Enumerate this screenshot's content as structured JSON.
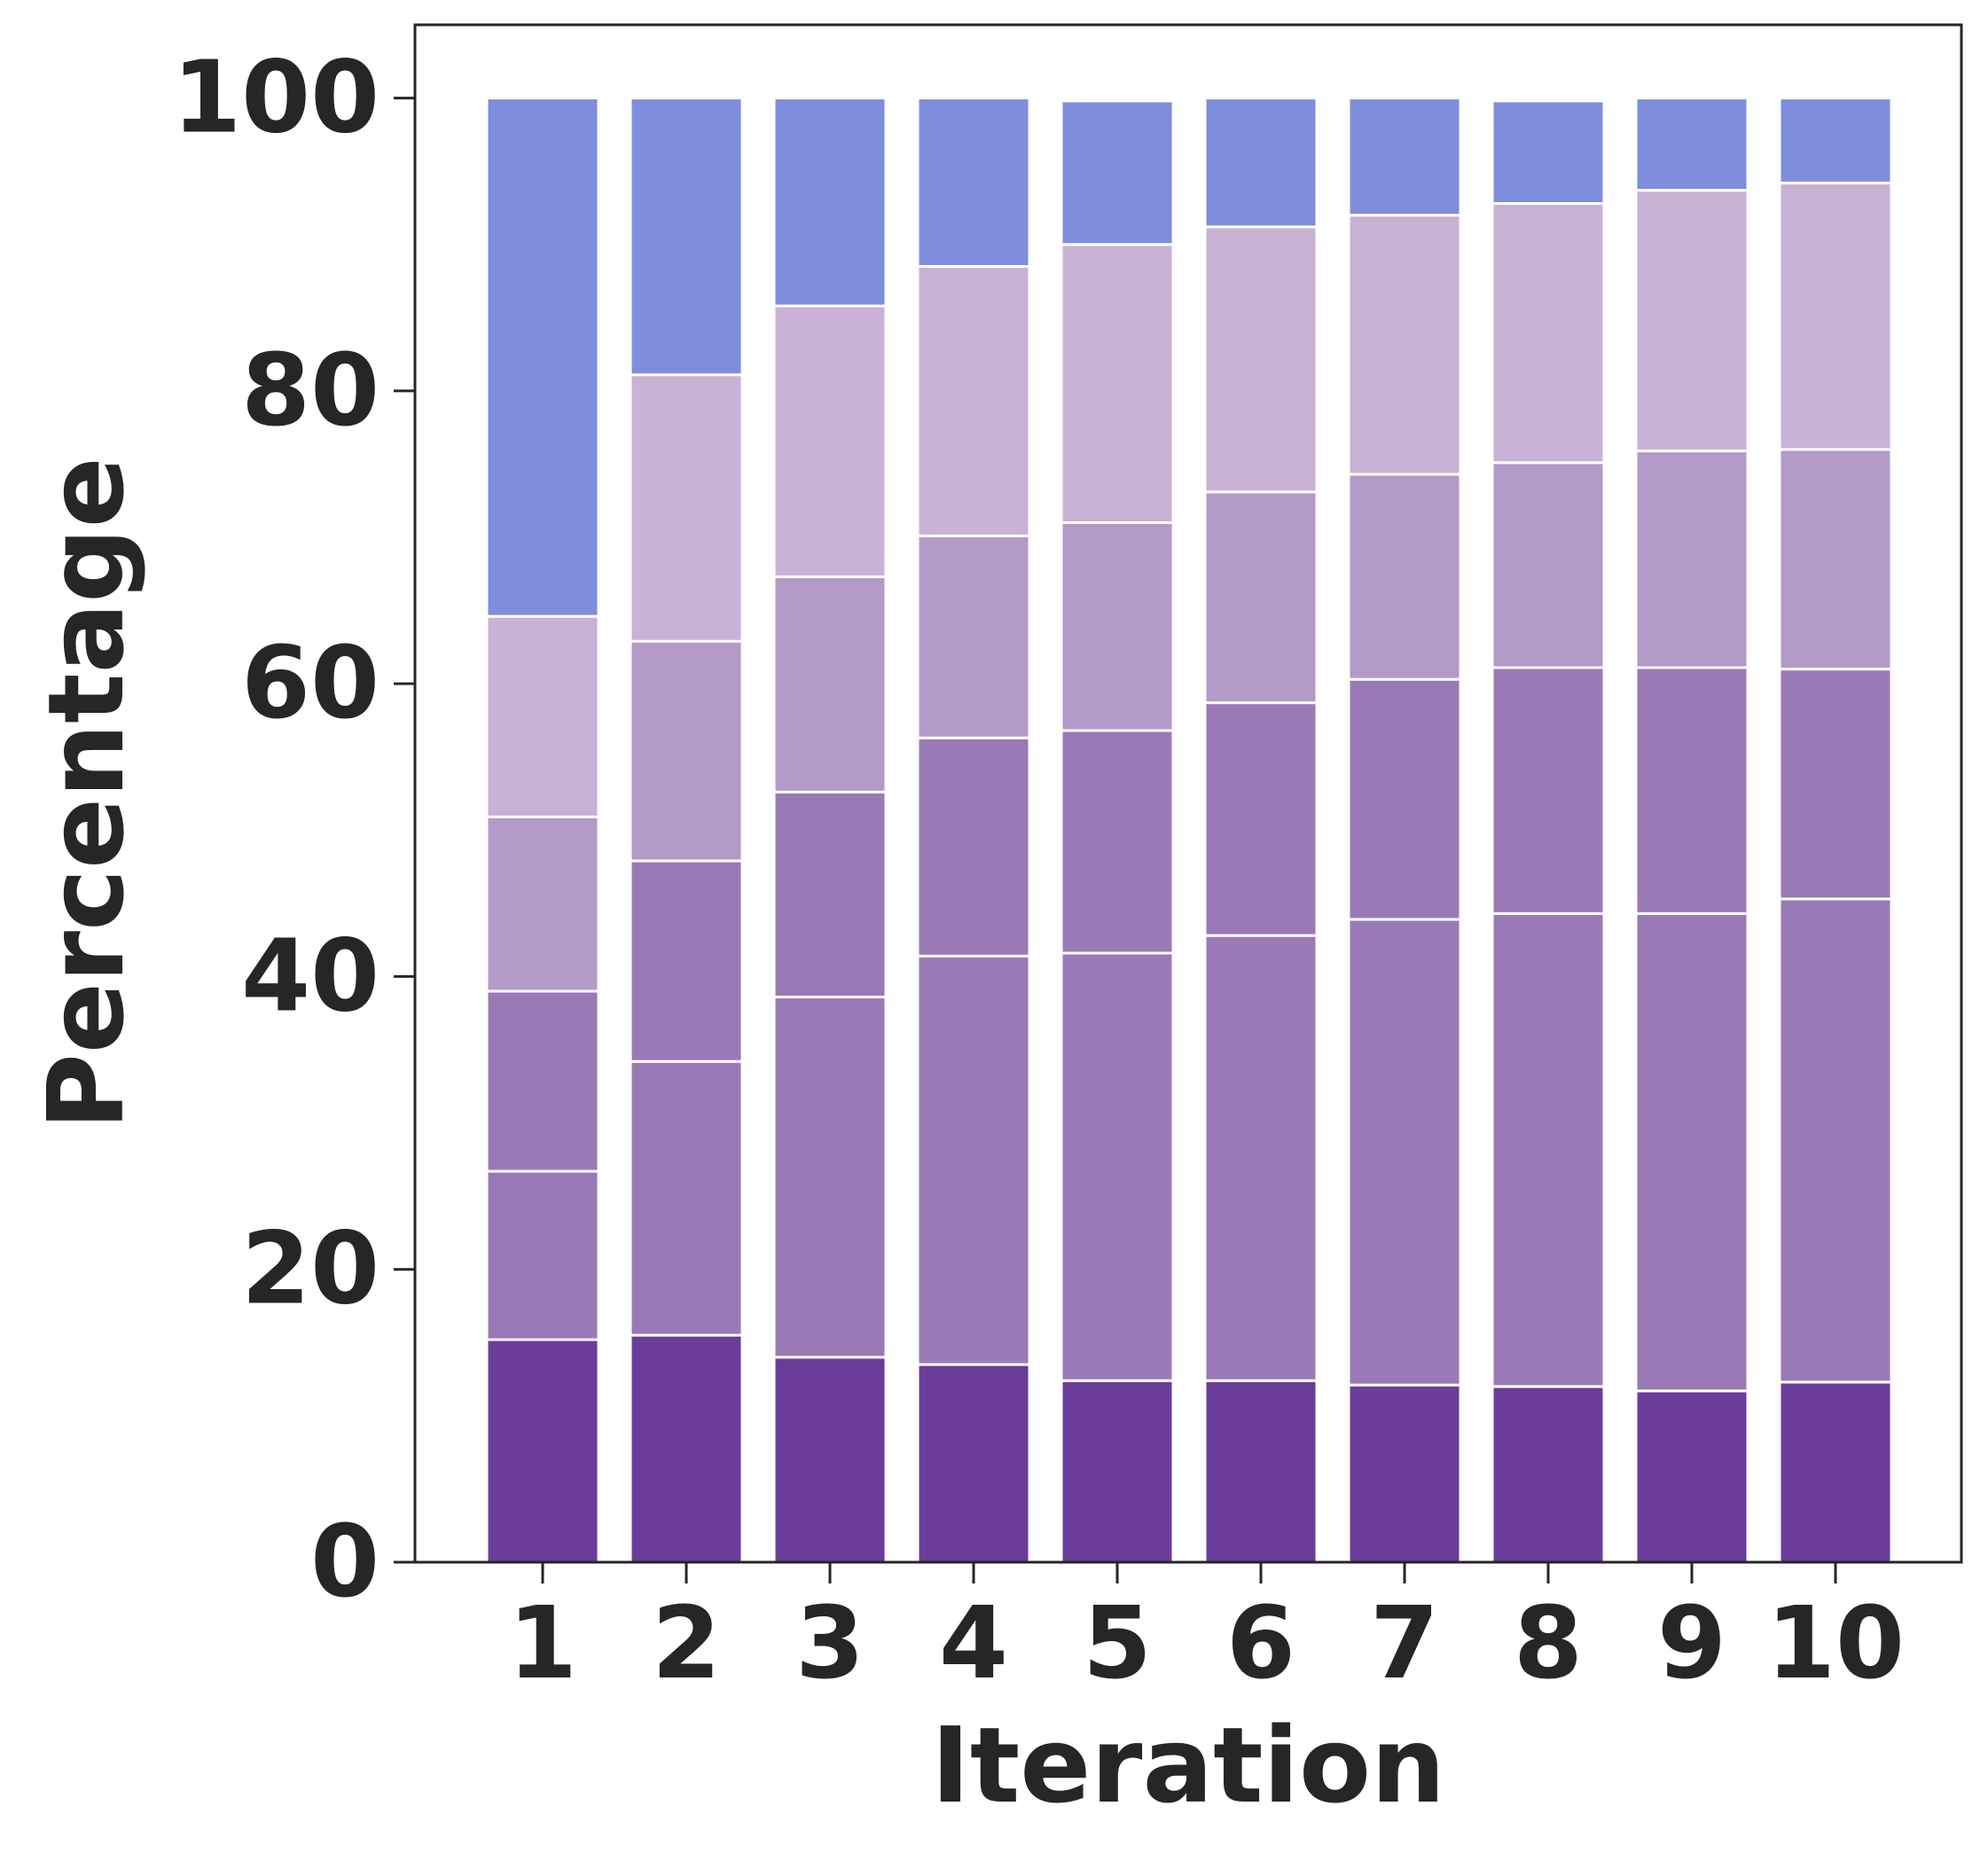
{
  "chart_data": {
    "type": "bar",
    "stacked": true,
    "xlabel": "Iteration",
    "ylabel": "Percentage",
    "ylim": [
      0,
      105
    ],
    "yticks": [
      0,
      20,
      40,
      60,
      80,
      100
    ],
    "grid": false,
    "legend": "none",
    "categories": [
      "1",
      "2",
      "3",
      "4",
      "5",
      "6",
      "7",
      "8",
      "9",
      "10"
    ],
    "series": [
      {
        "color": "#6a3d9a",
        "values": [
          15.2,
          15.5,
          14.0,
          13.5,
          12.4,
          12.4,
          12.1,
          12.0,
          11.7,
          12.3
        ]
      },
      {
        "color": "#9a7ab6",
        "values": [
          11.5,
          18.7,
          24.6,
          27.9,
          29.2,
          30.4,
          31.8,
          32.3,
          32.6,
          33.0
        ]
      },
      {
        "color": "#9a7ab6",
        "values": [
          12.3,
          13.7,
          14.0,
          14.9,
          15.2,
          15.9,
          16.4,
          16.8,
          16.8,
          15.7
        ]
      },
      {
        "color": "#b49ac8",
        "values": [
          11.9,
          15.0,
          14.7,
          13.8,
          14.2,
          14.4,
          14.0,
          14.0,
          14.8,
          15.0
        ]
      },
      {
        "color": "#c9b2d5",
        "values": [
          13.7,
          18.2,
          18.5,
          18.4,
          19.0,
          18.1,
          17.7,
          17.7,
          17.8,
          18.2
        ]
      },
      {
        "color": "#7f8edc",
        "values": [
          35.4,
          18.9,
          14.2,
          11.5,
          9.8,
          8.8,
          8.0,
          7.0,
          6.3,
          5.8
        ]
      }
    ]
  }
}
